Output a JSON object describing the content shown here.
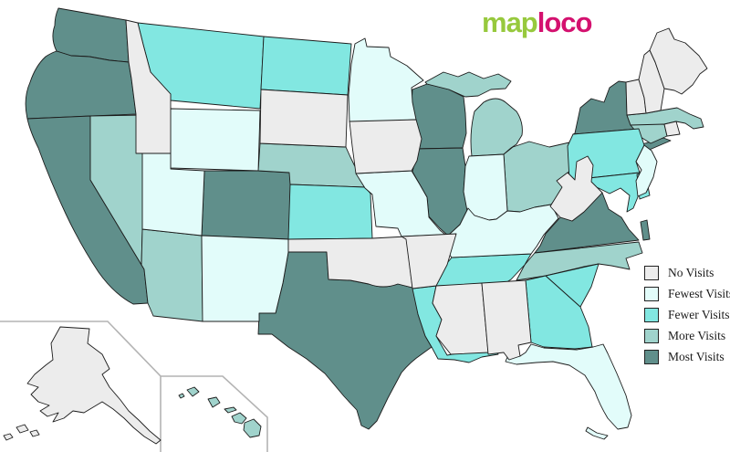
{
  "logo": {
    "text_green": "map",
    "text_pink": "loco",
    "green_color": "#97c93d",
    "pink_color": "#d4116f"
  },
  "legend": {
    "items": [
      {
        "key": "no",
        "label": "No Visits",
        "color": "#ececec"
      },
      {
        "key": "fewest",
        "label": "Fewest Visits",
        "color": "#e2fcfa"
      },
      {
        "key": "fewer",
        "label": "Fewer Visits",
        "color": "#82e7e1"
      },
      {
        "key": "more",
        "label": "More Visits",
        "color": "#a0d3cc"
      },
      {
        "key": "most",
        "label": "Most Visits",
        "color": "#608f8b"
      }
    ],
    "swatch_border_color": "#222222"
  },
  "map": {
    "background_color": "#ffffff",
    "state_border_color": "#1c1c1c",
    "inset_border_color": "#b4b4b4",
    "states": [
      {
        "id": "WA",
        "name": "Washington",
        "category": "most"
      },
      {
        "id": "OR",
        "name": "Oregon",
        "category": "most"
      },
      {
        "id": "CA",
        "name": "California",
        "category": "most"
      },
      {
        "id": "CO",
        "name": "Colorado",
        "category": "most"
      },
      {
        "id": "TX",
        "name": "Texas",
        "category": "most"
      },
      {
        "id": "WI",
        "name": "Wisconsin",
        "category": "most"
      },
      {
        "id": "IL",
        "name": "Illinois",
        "category": "most"
      },
      {
        "id": "NY",
        "name": "New York",
        "category": "most"
      },
      {
        "id": "VA",
        "name": "Virginia",
        "category": "most"
      },
      {
        "id": "NV",
        "name": "Nevada",
        "category": "more"
      },
      {
        "id": "AZ",
        "name": "Arizona",
        "category": "more"
      },
      {
        "id": "NE",
        "name": "Nebraska",
        "category": "more"
      },
      {
        "id": "MI",
        "name": "Michigan",
        "category": "more"
      },
      {
        "id": "OH",
        "name": "Ohio",
        "category": "more"
      },
      {
        "id": "NC",
        "name": "North Carolina",
        "category": "more"
      },
      {
        "id": "MA",
        "name": "Massachusetts",
        "category": "more"
      },
      {
        "id": "CT",
        "name": "Connecticut",
        "category": "more"
      },
      {
        "id": "HI",
        "name": "Hawaii",
        "category": "more"
      },
      {
        "id": "MT",
        "name": "Montana",
        "category": "fewer"
      },
      {
        "id": "ND",
        "name": "North Dakota",
        "category": "fewer"
      },
      {
        "id": "KS",
        "name": "Kansas",
        "category": "fewer"
      },
      {
        "id": "LA",
        "name": "Louisiana",
        "category": "fewer"
      },
      {
        "id": "TN",
        "name": "Tennessee",
        "category": "fewer"
      },
      {
        "id": "GA",
        "name": "Georgia",
        "category": "fewer"
      },
      {
        "id": "SC",
        "name": "South Carolina",
        "category": "fewer"
      },
      {
        "id": "PA",
        "name": "Pennsylvania",
        "category": "fewer"
      },
      {
        "id": "MD",
        "name": "Maryland",
        "category": "fewer"
      },
      {
        "id": "DE",
        "name": "Delaware",
        "category": "fewer"
      },
      {
        "id": "WY",
        "name": "Wyoming",
        "category": "fewest"
      },
      {
        "id": "UT",
        "name": "Utah",
        "category": "fewest"
      },
      {
        "id": "NM",
        "name": "New Mexico",
        "category": "fewest"
      },
      {
        "id": "MN",
        "name": "Minnesota",
        "category": "fewest"
      },
      {
        "id": "MO",
        "name": "Missouri",
        "category": "fewest"
      },
      {
        "id": "IN",
        "name": "Indiana",
        "category": "fewest"
      },
      {
        "id": "KY",
        "name": "Kentucky",
        "category": "fewest"
      },
      {
        "id": "FL",
        "name": "Florida",
        "category": "fewest"
      },
      {
        "id": "NJ",
        "name": "New Jersey",
        "category": "fewest"
      },
      {
        "id": "ID",
        "name": "Idaho",
        "category": "no"
      },
      {
        "id": "SD",
        "name": "South Dakota",
        "category": "no"
      },
      {
        "id": "IA",
        "name": "Iowa",
        "category": "no"
      },
      {
        "id": "OK",
        "name": "Oklahoma",
        "category": "no"
      },
      {
        "id": "AR",
        "name": "Arkansas",
        "category": "no"
      },
      {
        "id": "MS",
        "name": "Mississippi",
        "category": "no"
      },
      {
        "id": "AL",
        "name": "Alabama",
        "category": "no"
      },
      {
        "id": "WV",
        "name": "West Virginia",
        "category": "no"
      },
      {
        "id": "VT",
        "name": "Vermont",
        "category": "no"
      },
      {
        "id": "NH",
        "name": "New Hampshire",
        "category": "no"
      },
      {
        "id": "ME",
        "name": "Maine",
        "category": "no"
      },
      {
        "id": "RI",
        "name": "Rhode Island",
        "category": "no"
      },
      {
        "id": "AK",
        "name": "Alaska",
        "category": "no"
      }
    ]
  }
}
